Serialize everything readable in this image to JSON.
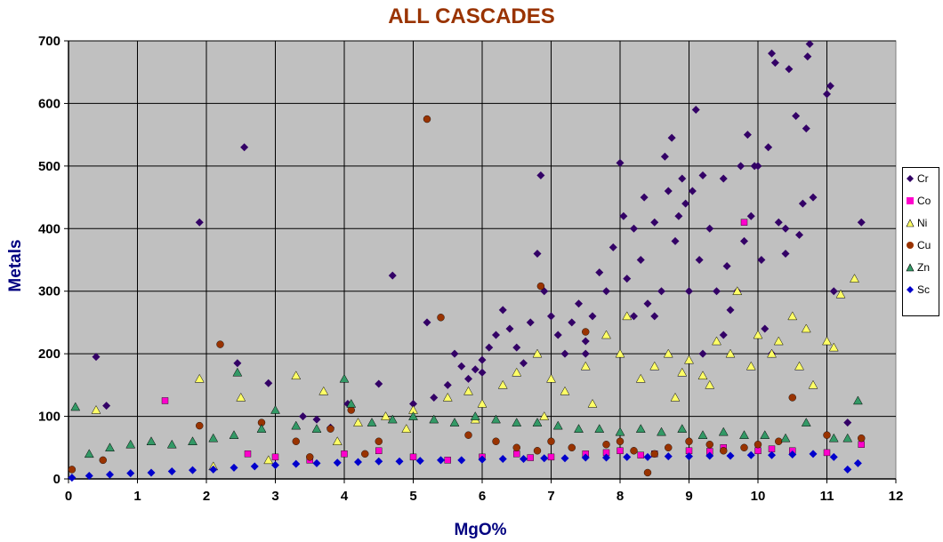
{
  "chart_data": {
    "type": "scatter",
    "title": "ALL CASCADES",
    "xlabel": "MgO%",
    "ylabel": "Metals",
    "xlim": [
      0,
      12
    ],
    "ylim": [
      0,
      700
    ],
    "x_ticks": [
      "0",
      "1",
      "2",
      "3",
      "4",
      "5",
      "6",
      "7",
      "8",
      "9",
      "10",
      "11",
      "12"
    ],
    "y_ticks": [
      "0",
      "100",
      "200",
      "300",
      "400",
      "500",
      "600",
      "700"
    ],
    "grid": true,
    "legend_position": "right",
    "plot_background": "#c0c0c0",
    "series": [
      {
        "name": "Cr",
        "marker": "diamond",
        "color": "#330066",
        "points": [
          [
            0.4,
            195
          ],
          [
            0.55,
            117
          ],
          [
            1.9,
            410
          ],
          [
            2.45,
            185
          ],
          [
            2.55,
            530
          ],
          [
            2.9,
            153
          ],
          [
            3.4,
            100
          ],
          [
            3.6,
            95
          ],
          [
            3.8,
            82
          ],
          [
            4.05,
            120
          ],
          [
            4.5,
            152
          ],
          [
            4.7,
            325
          ],
          [
            5.0,
            120
          ],
          [
            5.2,
            250
          ],
          [
            5.3,
            130
          ],
          [
            5.5,
            150
          ],
          [
            5.6,
            200
          ],
          [
            5.8,
            160
          ],
          [
            5.9,
            175
          ],
          [
            6.0,
            190
          ],
          [
            6.1,
            210
          ],
          [
            6.2,
            230
          ],
          [
            6.3,
            270
          ],
          [
            6.4,
            240
          ],
          [
            6.5,
            210
          ],
          [
            6.6,
            185
          ],
          [
            6.7,
            250
          ],
          [
            6.8,
            360
          ],
          [
            6.85,
            485
          ],
          [
            6.9,
            300
          ],
          [
            7.0,
            260
          ],
          [
            7.1,
            230
          ],
          [
            7.2,
            200
          ],
          [
            7.3,
            250
          ],
          [
            7.4,
            280
          ],
          [
            7.5,
            220
          ],
          [
            7.6,
            260
          ],
          [
            7.7,
            330
          ],
          [
            7.8,
            300
          ],
          [
            7.9,
            370
          ],
          [
            8.0,
            505
          ],
          [
            8.05,
            420
          ],
          [
            8.1,
            320
          ],
          [
            8.2,
            400
          ],
          [
            8.3,
            350
          ],
          [
            8.35,
            450
          ],
          [
            8.4,
            280
          ],
          [
            8.5,
            410
          ],
          [
            8.6,
            300
          ],
          [
            8.65,
            515
          ],
          [
            8.7,
            460
          ],
          [
            8.75,
            545
          ],
          [
            8.8,
            380
          ],
          [
            8.85,
            420
          ],
          [
            8.9,
            480
          ],
          [
            8.95,
            440
          ],
          [
            9.0,
            300
          ],
          [
            9.05,
            460
          ],
          [
            9.1,
            590
          ],
          [
            9.15,
            350
          ],
          [
            9.2,
            485
          ],
          [
            9.3,
            400
          ],
          [
            9.4,
            300
          ],
          [
            9.5,
            480
          ],
          [
            9.55,
            340
          ],
          [
            9.6,
            270
          ],
          [
            9.7,
            300
          ],
          [
            9.75,
            500
          ],
          [
            9.8,
            380
          ],
          [
            9.85,
            550
          ],
          [
            9.9,
            420
          ],
          [
            9.95,
            500
          ],
          [
            10.0,
            500
          ],
          [
            10.05,
            350
          ],
          [
            10.1,
            240
          ],
          [
            10.15,
            530
          ],
          [
            10.2,
            680
          ],
          [
            10.25,
            665
          ],
          [
            10.3,
            410
          ],
          [
            10.4,
            400
          ],
          [
            10.45,
            655
          ],
          [
            10.55,
            580
          ],
          [
            10.6,
            390
          ],
          [
            10.65,
            440
          ],
          [
            10.7,
            560
          ],
          [
            10.72,
            675
          ],
          [
            10.75,
            695
          ],
          [
            10.8,
            450
          ],
          [
            11.0,
            615
          ],
          [
            11.05,
            628
          ],
          [
            11.1,
            300
          ],
          [
            11.3,
            90
          ],
          [
            11.5,
            410
          ],
          [
            8.5,
            260
          ],
          [
            8.2,
            260
          ],
          [
            9.2,
            200
          ],
          [
            9.5,
            230
          ],
          [
            7.5,
            200
          ],
          [
            6.0,
            170
          ],
          [
            5.7,
            180
          ],
          [
            10.4,
            360
          ],
          [
            10.2,
            200
          ]
        ]
      },
      {
        "name": "Co",
        "marker": "square",
        "color": "#ff00cc",
        "points": [
          [
            1.4,
            125
          ],
          [
            2.6,
            40
          ],
          [
            3.0,
            35
          ],
          [
            3.5,
            30
          ],
          [
            4.0,
            40
          ],
          [
            4.5,
            45
          ],
          [
            5.0,
            35
          ],
          [
            5.5,
            30
          ],
          [
            6.0,
            35
          ],
          [
            6.5,
            40
          ],
          [
            7.0,
            35
          ],
          [
            7.5,
            40
          ],
          [
            8.0,
            45
          ],
          [
            8.5,
            40
          ],
          [
            9.0,
            45
          ],
          [
            9.5,
            50
          ],
          [
            9.8,
            410
          ],
          [
            10.0,
            45
          ],
          [
            10.5,
            45
          ],
          [
            11.0,
            42
          ],
          [
            11.5,
            55
          ],
          [
            8.3,
            38
          ],
          [
            9.3,
            44
          ],
          [
            10.2,
            48
          ],
          [
            6.7,
            34
          ],
          [
            7.8,
            42
          ]
        ]
      },
      {
        "name": "Ni",
        "marker": "triangle",
        "color": "#ffff66",
        "points": [
          [
            0.4,
            110
          ],
          [
            1.9,
            160
          ],
          [
            2.5,
            130
          ],
          [
            3.3,
            165
          ],
          [
            3.7,
            140
          ],
          [
            4.2,
            90
          ],
          [
            4.6,
            100
          ],
          [
            5.0,
            110
          ],
          [
            5.5,
            130
          ],
          [
            5.8,
            140
          ],
          [
            6.0,
            120
          ],
          [
            6.3,
            150
          ],
          [
            6.5,
            170
          ],
          [
            6.8,
            200
          ],
          [
            7.0,
            160
          ],
          [
            7.2,
            140
          ],
          [
            7.5,
            180
          ],
          [
            7.8,
            230
          ],
          [
            8.0,
            200
          ],
          [
            8.1,
            260
          ],
          [
            8.3,
            160
          ],
          [
            8.5,
            180
          ],
          [
            8.7,
            200
          ],
          [
            8.9,
            170
          ],
          [
            9.0,
            190
          ],
          [
            9.2,
            165
          ],
          [
            9.4,
            220
          ],
          [
            9.6,
            200
          ],
          [
            9.7,
            300
          ],
          [
            9.9,
            180
          ],
          [
            10.0,
            230
          ],
          [
            10.2,
            200
          ],
          [
            10.3,
            220
          ],
          [
            10.5,
            260
          ],
          [
            10.7,
            240
          ],
          [
            10.8,
            150
          ],
          [
            11.0,
            220
          ],
          [
            11.1,
            210
          ],
          [
            11.4,
            320
          ],
          [
            11.2,
            295
          ],
          [
            10.6,
            180
          ],
          [
            9.3,
            150
          ],
          [
            8.8,
            130
          ],
          [
            7.6,
            120
          ],
          [
            6.9,
            100
          ],
          [
            5.9,
            95
          ],
          [
            4.9,
            80
          ],
          [
            3.9,
            60
          ],
          [
            2.9,
            30
          ],
          [
            2.1,
            20
          ]
        ]
      },
      {
        "name": "Cu",
        "marker": "circle",
        "color": "#993300",
        "points": [
          [
            0.05,
            15
          ],
          [
            0.5,
            30
          ],
          [
            1.9,
            85
          ],
          [
            2.2,
            215
          ],
          [
            2.8,
            90
          ],
          [
            3.3,
            60
          ],
          [
            3.8,
            80
          ],
          [
            4.1,
            110
          ],
          [
            4.5,
            60
          ],
          [
            5.2,
            575
          ],
          [
            5.4,
            258
          ],
          [
            5.8,
            70
          ],
          [
            6.2,
            60
          ],
          [
            6.5,
            50
          ],
          [
            6.85,
            308
          ],
          [
            7.0,
            60
          ],
          [
            7.3,
            50
          ],
          [
            7.5,
            235
          ],
          [
            7.8,
            55
          ],
          [
            8.0,
            60
          ],
          [
            8.2,
            45
          ],
          [
            8.5,
            40
          ],
          [
            8.7,
            50
          ],
          [
            9.0,
            60
          ],
          [
            9.3,
            55
          ],
          [
            9.5,
            45
          ],
          [
            9.8,
            50
          ],
          [
            10.0,
            55
          ],
          [
            10.3,
            60
          ],
          [
            10.5,
            130
          ],
          [
            11.0,
            70
          ],
          [
            11.5,
            65
          ],
          [
            4.3,
            40
          ],
          [
            3.5,
            35
          ],
          [
            6.8,
            45
          ],
          [
            8.4,
            10
          ]
        ]
      },
      {
        "name": "Zn",
        "marker": "triangle",
        "color": "#339966",
        "points": [
          [
            0.1,
            115
          ],
          [
            0.3,
            40
          ],
          [
            0.6,
            50
          ],
          [
            0.9,
            55
          ],
          [
            1.2,
            60
          ],
          [
            1.5,
            55
          ],
          [
            1.8,
            60
          ],
          [
            2.1,
            65
          ],
          [
            2.4,
            70
          ],
          [
            2.45,
            170
          ],
          [
            2.8,
            80
          ],
          [
            3.0,
            110
          ],
          [
            3.3,
            85
          ],
          [
            3.6,
            80
          ],
          [
            4.0,
            160
          ],
          [
            4.1,
            120
          ],
          [
            4.4,
            90
          ],
          [
            4.7,
            95
          ],
          [
            5.0,
            100
          ],
          [
            5.3,
            95
          ],
          [
            5.6,
            90
          ],
          [
            5.9,
            100
          ],
          [
            6.2,
            95
          ],
          [
            6.5,
            90
          ],
          [
            6.8,
            90
          ],
          [
            7.1,
            85
          ],
          [
            7.4,
            80
          ],
          [
            7.7,
            80
          ],
          [
            8.0,
            75
          ],
          [
            8.3,
            80
          ],
          [
            8.6,
            75
          ],
          [
            8.9,
            80
          ],
          [
            9.2,
            70
          ],
          [
            9.5,
            75
          ],
          [
            9.8,
            70
          ],
          [
            10.1,
            70
          ],
          [
            10.4,
            65
          ],
          [
            10.7,
            90
          ],
          [
            11.1,
            65
          ],
          [
            11.3,
            65
          ],
          [
            11.45,
            125
          ]
        ]
      },
      {
        "name": "Sc",
        "marker": "diamond",
        "color": "#0000cc",
        "points": [
          [
            0.05,
            2
          ],
          [
            0.3,
            5
          ],
          [
            0.6,
            7
          ],
          [
            0.9,
            9
          ],
          [
            1.2,
            10
          ],
          [
            1.5,
            12
          ],
          [
            1.8,
            14
          ],
          [
            2.1,
            15
          ],
          [
            2.4,
            18
          ],
          [
            2.7,
            20
          ],
          [
            3.0,
            22
          ],
          [
            3.3,
            24
          ],
          [
            3.6,
            25
          ],
          [
            3.9,
            26
          ],
          [
            4.2,
            27
          ],
          [
            4.5,
            28
          ],
          [
            4.8,
            28
          ],
          [
            5.1,
            29
          ],
          [
            5.4,
            30
          ],
          [
            5.7,
            30
          ],
          [
            6.0,
            31
          ],
          [
            6.3,
            32
          ],
          [
            6.6,
            32
          ],
          [
            6.9,
            33
          ],
          [
            7.2,
            33
          ],
          [
            7.5,
            34
          ],
          [
            7.8,
            34
          ],
          [
            8.1,
            35
          ],
          [
            8.4,
            35
          ],
          [
            8.7,
            36
          ],
          [
            9.0,
            36
          ],
          [
            9.3,
            37
          ],
          [
            9.6,
            37
          ],
          [
            9.9,
            38
          ],
          [
            10.2,
            38
          ],
          [
            10.5,
            39
          ],
          [
            10.8,
            40
          ],
          [
            11.1,
            35
          ],
          [
            11.3,
            15
          ],
          [
            11.45,
            25
          ]
        ]
      }
    ]
  }
}
